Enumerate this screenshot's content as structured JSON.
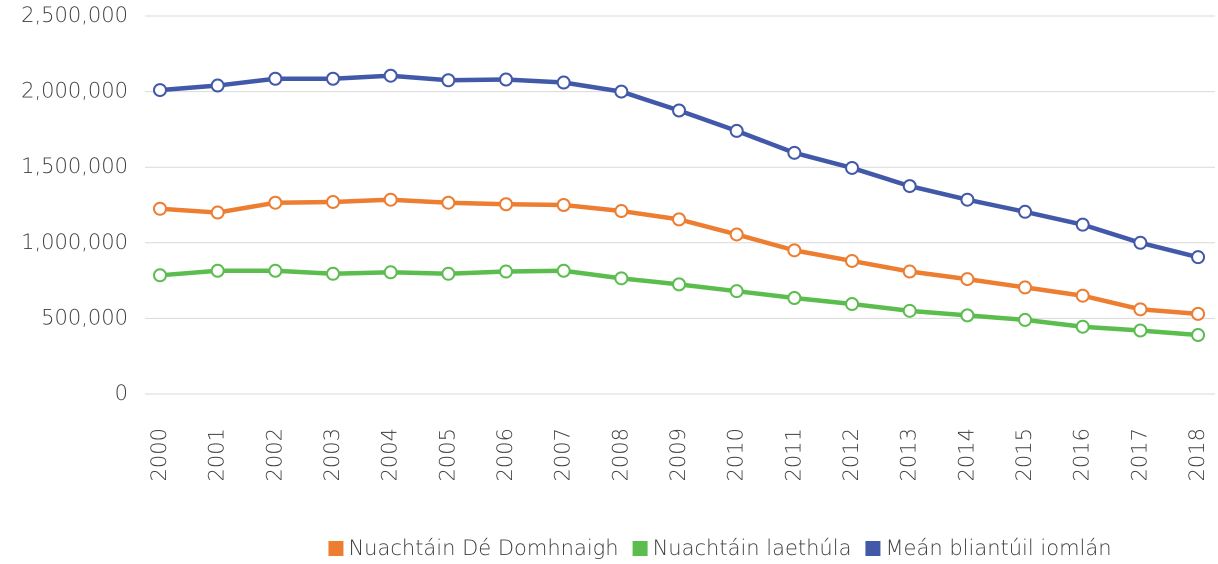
{
  "chart_data": {
    "type": "line",
    "categories": [
      "2000",
      "2001",
      "2002",
      "2003",
      "2004",
      "2005",
      "2006",
      "2007",
      "2008",
      "2009",
      "2010",
      "2011",
      "2012",
      "2013",
      "2014",
      "2015",
      "2016",
      "2017",
      "2018"
    ],
    "series": [
      {
        "name": "Nuachtáin Dé Domhnaigh",
        "color": "#ed7d31",
        "values": [
          1225000,
          1200000,
          1265000,
          1270000,
          1285000,
          1265000,
          1255000,
          1250000,
          1210000,
          1155000,
          1055000,
          950000,
          880000,
          810000,
          760000,
          705000,
          650000,
          560000,
          530000
        ]
      },
      {
        "name": "Nuachtáin laethúla",
        "color": "#5cbd4f",
        "values": [
          785000,
          815000,
          815000,
          795000,
          805000,
          795000,
          810000,
          815000,
          765000,
          725000,
          680000,
          635000,
          595000,
          550000,
          520000,
          490000,
          445000,
          420000,
          390000
        ]
      },
      {
        "name": "Meán bliantúil iomlán",
        "color": "#4159a8",
        "values": [
          2010000,
          2040000,
          2085000,
          2085000,
          2105000,
          2075000,
          2080000,
          2060000,
          2000000,
          1875000,
          1740000,
          1595000,
          1495000,
          1375000,
          1285000,
          1205000,
          1120000,
          1000000,
          905000
        ]
      }
    ],
    "ylim": [
      0,
      2500000
    ],
    "yticks": [
      0,
      {
        "value": 500000,
        "label": "500,000"
      },
      {
        "value": 1000000,
        "label": "1,000,000"
      },
      {
        "value": 1500000,
        "label": "1,500,000"
      },
      {
        "value": 2000000,
        "label": "2,000,000"
      },
      {
        "value": 2500000,
        "label": "2,500,000"
      }
    ],
    "grid": true,
    "legend": "bottom"
  }
}
